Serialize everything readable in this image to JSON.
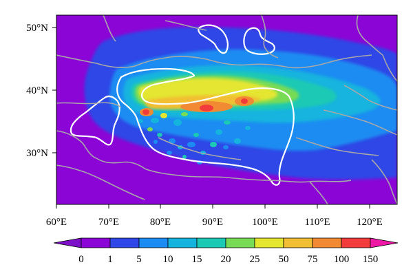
{
  "map": {
    "lon_ticks": [
      "60°E",
      "70°E",
      "80°E",
      "90°E",
      "100°E",
      "110°E",
      "120°E"
    ],
    "lat_ticks": [
      "50°N",
      "40°N",
      "30°N"
    ]
  },
  "colorbar": {
    "labels": [
      "0",
      "1",
      "5",
      "10",
      "15",
      "20",
      "25",
      "50",
      "75",
      "100",
      "150"
    ],
    "colors": [
      "#8b05d6",
      "#2e47e6",
      "#1c8cf2",
      "#14b4de",
      "#1cc9b4",
      "#78db55",
      "#e4e630",
      "#f2be33",
      "#f28a33",
      "#f23c3c",
      "#ee18a6",
      "#7d10c9"
    ]
  },
  "colors": {
    "background_field": "#8b05d6",
    "terrain_contour": "#ffffff",
    "borders": "#a8a8a8"
  }
}
